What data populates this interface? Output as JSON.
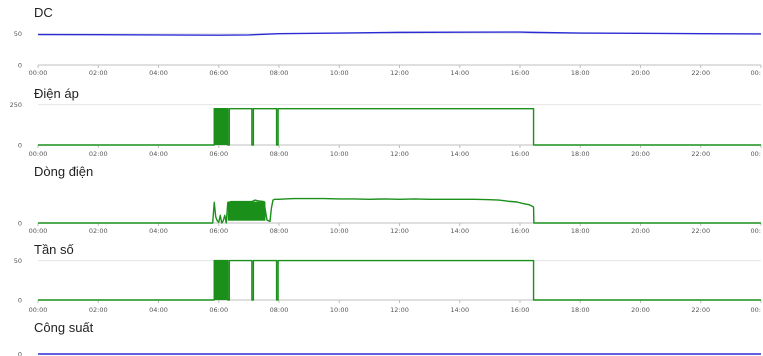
{
  "chart_data": [
    {
      "type": "line",
      "title": "DC",
      "color": "#2b2bd6",
      "x_unit": "hours",
      "x_tick_labels": [
        "00:00",
        "02:00",
        "04:00",
        "06:00",
        "08:00",
        "10:00",
        "12:00",
        "14:00",
        "16:00",
        "18:00",
        "20:00",
        "22:00",
        "00:"
      ],
      "y_tick_labels": [
        "0",
        "50"
      ],
      "xlim": [
        0,
        24
      ],
      "ylim": [
        0,
        60
      ],
      "series": [
        {
          "x": [
            0,
            2,
            4,
            6,
            7,
            8,
            10,
            12,
            14,
            16,
            16.4,
            18,
            20,
            22,
            24
          ],
          "y": [
            48,
            47.8,
            47.5,
            47,
            47.5,
            49.5,
            50.5,
            51.5,
            51.8,
            52,
            51.5,
            50.5,
            50,
            49.5,
            49
          ]
        }
      ]
    },
    {
      "type": "line",
      "title": "Điện áp",
      "color": "#1a8f1a",
      "x_unit": "hours",
      "x_tick_labels": [
        "00:00",
        "02:00",
        "04:00",
        "06:00",
        "08:00",
        "10:00",
        "12:00",
        "14:00",
        "16:00",
        "18:00",
        "20:00",
        "22:00",
        "00:"
      ],
      "y_tick_labels": [
        "0",
        "250"
      ],
      "xlim": [
        0,
        24
      ],
      "ylim": [
        0,
        260
      ],
      "series": [
        {
          "x": [
            0,
            5.85,
            5.85,
            6.3,
            6.3,
            6.35,
            6.35,
            7.1,
            7.1,
            7.15,
            7.15,
            7.92,
            7.92,
            7.97,
            7.97,
            16.45,
            16.45,
            24
          ],
          "y": [
            0,
            0,
            225,
            225,
            0,
            0,
            225,
            225,
            0,
            0,
            225,
            225,
            0,
            0,
            225,
            225,
            0,
            0
          ]
        }
      ],
      "dense_band": {
        "x_start": 5.85,
        "x_end": 6.3,
        "y_low": 0,
        "y_high": 225
      }
    },
    {
      "type": "line",
      "title": "Dòng điện",
      "color": "#1a8f1a",
      "x_unit": "hours",
      "x_tick_labels": [
        "00:00",
        "02:00",
        "04:00",
        "06:00",
        "08:00",
        "10:00",
        "12:00",
        "14:00",
        "16:00",
        "18:00",
        "20:00",
        "22:00",
        "00:"
      ],
      "y_tick_labels": [
        "0"
      ],
      "xlim": [
        0,
        24
      ],
      "ylim": [
        0,
        55
      ],
      "series": [
        {
          "x": [
            0,
            5.8,
            5.85,
            5.9,
            5.95,
            6.0,
            6.05,
            6.1,
            6.15,
            6.2,
            6.25,
            6.3,
            6.4,
            6.5,
            7.1,
            7.2,
            7.3,
            7.5,
            7.6,
            7.7,
            7.75,
            7.8,
            7.85,
            7.9,
            8.0,
            8.2,
            8.5,
            9.0,
            9.5,
            10.0,
            10.5,
            11.0,
            11.5,
            12.0,
            12.5,
            13.0,
            13.5,
            14.0,
            14.5,
            15.0,
            15.3,
            15.6,
            15.9,
            16.1,
            16.3,
            16.45,
            16.46,
            24
          ],
          "y": [
            0,
            0,
            27,
            8,
            3,
            1,
            10,
            0,
            3,
            10,
            0,
            27,
            28,
            28,
            28,
            30,
            29,
            28,
            4,
            2,
            20,
            30,
            31,
            31,
            31,
            31.5,
            32,
            32,
            32,
            31.5,
            31.5,
            31,
            31.5,
            31,
            31.5,
            31,
            31,
            31,
            31,
            30.5,
            30,
            28.5,
            27.5,
            25.5,
            24,
            21,
            0,
            0
          ]
        }
      ],
      "dense_band": {
        "x_start": 6.3,
        "x_end": 7.55,
        "y_low": 3,
        "y_high": 28
      }
    },
    {
      "type": "line",
      "title": "Tần số",
      "color": "#1a8f1a",
      "x_unit": "hours",
      "x_tick_labels": [
        "00:00",
        "02:00",
        "04:00",
        "06:00",
        "08:00",
        "10:00",
        "12:00",
        "14:00",
        "16:00",
        "18:00",
        "20:00",
        "22:00",
        "00:"
      ],
      "y_tick_labels": [
        "0",
        "50"
      ],
      "xlim": [
        0,
        24
      ],
      "ylim": [
        0,
        52
      ],
      "series": [
        {
          "x": [
            0,
            5.85,
            5.85,
            6.3,
            6.3,
            6.35,
            6.35,
            7.1,
            7.1,
            7.15,
            7.15,
            7.92,
            7.92,
            7.97,
            7.97,
            16.45,
            16.45,
            24
          ],
          "y": [
            0,
            0,
            50,
            50,
            0,
            0,
            50,
            50,
            0,
            0,
            50,
            50,
            0,
            0,
            50,
            50,
            0,
            0
          ]
        }
      ],
      "dense_band": {
        "x_start": 5.85,
        "x_end": 6.3,
        "y_low": 0,
        "y_high": 50
      }
    },
    {
      "type": "line",
      "title": "Công suất",
      "color": "#2b2bd6",
      "x_unit": "hours",
      "x_tick_labels": [],
      "y_tick_labels": [
        "0"
      ],
      "xlim": [
        0,
        24
      ],
      "ylim": [
        0,
        10
      ],
      "series": [
        {
          "x": [
            0,
            24
          ],
          "y": [
            0,
            0
          ]
        }
      ]
    }
  ]
}
